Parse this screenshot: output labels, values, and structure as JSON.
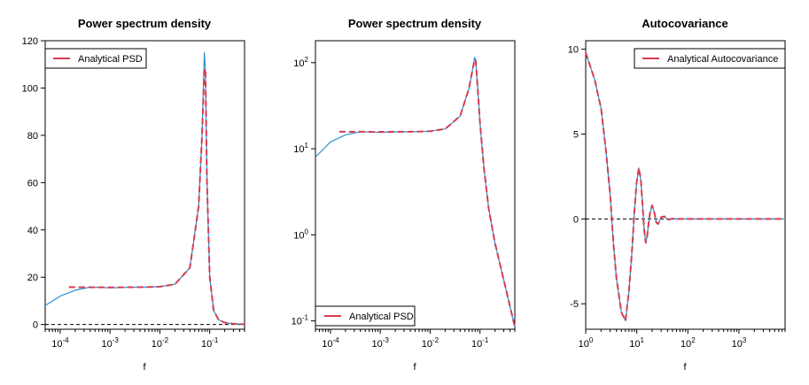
{
  "colors": {
    "estimate": "#2c8fd3",
    "analytical": "#d83b50",
    "axis": "#000000",
    "zero_line": "#000000"
  },
  "chart_data": [
    {
      "type": "line",
      "title": "Power spectrum density",
      "xlabel": "f",
      "ylabel": "",
      "xscale": "log",
      "yscale": "linear",
      "xlim": [
        5e-05,
        0.5
      ],
      "ylim": [
        -2,
        120
      ],
      "x_ticks": [
        0.0001,
        0.001,
        0.01,
        0.1
      ],
      "x_tick_labels": [
        {
          "base": "10",
          "exp": "-4"
        },
        {
          "base": "10",
          "exp": "-3"
        },
        {
          "base": "10",
          "exp": "-2"
        },
        {
          "base": "10",
          "exp": "-1"
        }
      ],
      "y_ticks": [
        0,
        20,
        40,
        60,
        80,
        100,
        120
      ],
      "y_tick_labels": [
        "0",
        "20",
        "40",
        "60",
        "80",
        "100",
        "120"
      ],
      "legend": {
        "position": "top-left",
        "entries": [
          "Analytical PSD"
        ]
      },
      "zero_line": 0,
      "series": [
        {
          "role": "estimate",
          "x": [
            5e-05,
            0.0001,
            0.0002,
            0.0004,
            0.001,
            0.002,
            0.005,
            0.01,
            0.02,
            0.04,
            0.06,
            0.07,
            0.078,
            0.082,
            0.088,
            0.1,
            0.12,
            0.15,
            0.2,
            0.3,
            0.5
          ],
          "y": [
            8,
            12,
            14.5,
            15.8,
            15.5,
            15.7,
            15.8,
            16,
            17,
            24,
            50,
            80,
            115,
            108,
            60,
            20,
            6,
            2,
            0.8,
            0.3,
            0.1
          ]
        },
        {
          "name": "Analytical PSD",
          "x": [
            0.00015,
            0.001,
            0.005,
            0.01,
            0.02,
            0.04,
            0.06,
            0.07,
            0.078,
            0.082,
            0.088,
            0.1,
            0.12,
            0.15,
            0.2,
            0.3,
            0.5
          ],
          "y": [
            15.8,
            15.7,
            15.8,
            16,
            17,
            24,
            50,
            80,
            108,
            108,
            60,
            20,
            6,
            2,
            0.8,
            0.3,
            0.1
          ]
        }
      ]
    },
    {
      "type": "line",
      "title": "Power spectrum density",
      "xlabel": "f",
      "ylabel": "",
      "xscale": "log",
      "yscale": "log",
      "xlim": [
        5e-05,
        0.5
      ],
      "ylim": [
        0.08,
        180
      ],
      "x_ticks": [
        0.0001,
        0.001,
        0.01,
        0.1
      ],
      "x_tick_labels": [
        {
          "base": "10",
          "exp": "-4"
        },
        {
          "base": "10",
          "exp": "-3"
        },
        {
          "base": "10",
          "exp": "-2"
        },
        {
          "base": "10",
          "exp": "-1"
        }
      ],
      "y_ticks": [
        0.1,
        1,
        10,
        100
      ],
      "y_tick_labels": [
        {
          "base": "10",
          "exp": "-1"
        },
        {
          "base": "10",
          "exp": "0"
        },
        {
          "base": "10",
          "exp": "1"
        },
        {
          "base": "10",
          "exp": "2"
        }
      ],
      "legend": {
        "position": "bottom-left",
        "entries": [
          "Analytical PSD"
        ]
      },
      "series": [
        {
          "role": "estimate",
          "x": [
            5e-05,
            0.0001,
            0.0002,
            0.0004,
            0.001,
            0.002,
            0.005,
            0.01,
            0.02,
            0.04,
            0.06,
            0.07,
            0.078,
            0.082,
            0.088,
            0.1,
            0.12,
            0.15,
            0.2,
            0.3,
            0.5
          ],
          "y": [
            8,
            12,
            14.5,
            15.8,
            15.5,
            15.7,
            15.8,
            16,
            17,
            24,
            50,
            80,
            115,
            108,
            60,
            20,
            6,
            2,
            0.8,
            0.3,
            0.085
          ]
        },
        {
          "name": "Analytical PSD",
          "x": [
            0.00015,
            0.001,
            0.005,
            0.01,
            0.02,
            0.04,
            0.06,
            0.07,
            0.078,
            0.082,
            0.088,
            0.1,
            0.12,
            0.15,
            0.2,
            0.3,
            0.5
          ],
          "y": [
            15.8,
            15.7,
            15.8,
            16,
            17,
            24,
            50,
            80,
            108,
            108,
            60,
            20,
            6,
            2,
            0.8,
            0.3,
            0.085
          ]
        }
      ]
    },
    {
      "type": "line",
      "title": "Autocovariance",
      "xlabel": "f",
      "ylabel": "",
      "xscale": "log",
      "yscale": "linear",
      "xlim": [
        1,
        8000
      ],
      "ylim": [
        -6.5,
        10.5
      ],
      "x_ticks": [
        1,
        10,
        100,
        1000
      ],
      "x_tick_labels": [
        {
          "base": "10",
          "exp": "0"
        },
        {
          "base": "10",
          "exp": "1"
        },
        {
          "base": "10",
          "exp": "2"
        },
        {
          "base": "10",
          "exp": "3"
        }
      ],
      "y_ticks": [
        -5,
        0,
        5,
        10
      ],
      "y_tick_labels": [
        "-5",
        "0",
        "5",
        "10"
      ],
      "legend": {
        "position": "top-right",
        "entries": [
          "Analytical Autocovariance"
        ]
      },
      "zero_line": 0,
      "series": [
        {
          "role": "estimate",
          "x": [
            1,
            1.5,
            2,
            2.5,
            3,
            3.5,
            4,
            5,
            6,
            7,
            8,
            9,
            10,
            11,
            12,
            13,
            14,
            15,
            16,
            17,
            18,
            20,
            22,
            24,
            26,
            28,
            30,
            35,
            40,
            50,
            60,
            80,
            100,
            1000,
            8000
          ],
          "y": [
            9.8,
            8.2,
            6.5,
            4,
            1.5,
            -1.5,
            -3.5,
            -5.5,
            -6,
            -4.3,
            -2,
            0.5,
            2.2,
            3,
            2.3,
            0.8,
            -0.7,
            -1.4,
            -1,
            -0.3,
            0.3,
            0.8,
            0.4,
            -0.2,
            -0.3,
            -0.1,
            0.1,
            0.15,
            -0.05,
            0.02,
            0,
            0,
            0,
            0,
            0
          ]
        },
        {
          "name": "Analytical Autocovariance",
          "x": [
            1,
            1.5,
            2,
            2.5,
            3,
            3.5,
            4,
            5,
            6,
            7,
            8,
            9,
            10,
            11,
            12,
            13,
            14,
            15,
            16,
            17,
            18,
            20,
            22,
            24,
            26,
            28,
            30,
            35,
            40,
            50,
            60,
            80,
            100,
            1000,
            8000
          ],
          "y": [
            9.8,
            8.2,
            6.5,
            4,
            1.5,
            -1.5,
            -3.5,
            -5.5,
            -6,
            -4.3,
            -2,
            0.5,
            2.2,
            3,
            2.3,
            0.8,
            -0.7,
            -1.4,
            -1,
            -0.3,
            0.3,
            0.8,
            0.4,
            -0.2,
            -0.3,
            -0.1,
            0.1,
            0.15,
            -0.05,
            0.02,
            0,
            0,
            0,
            0,
            0
          ]
        }
      ]
    }
  ]
}
